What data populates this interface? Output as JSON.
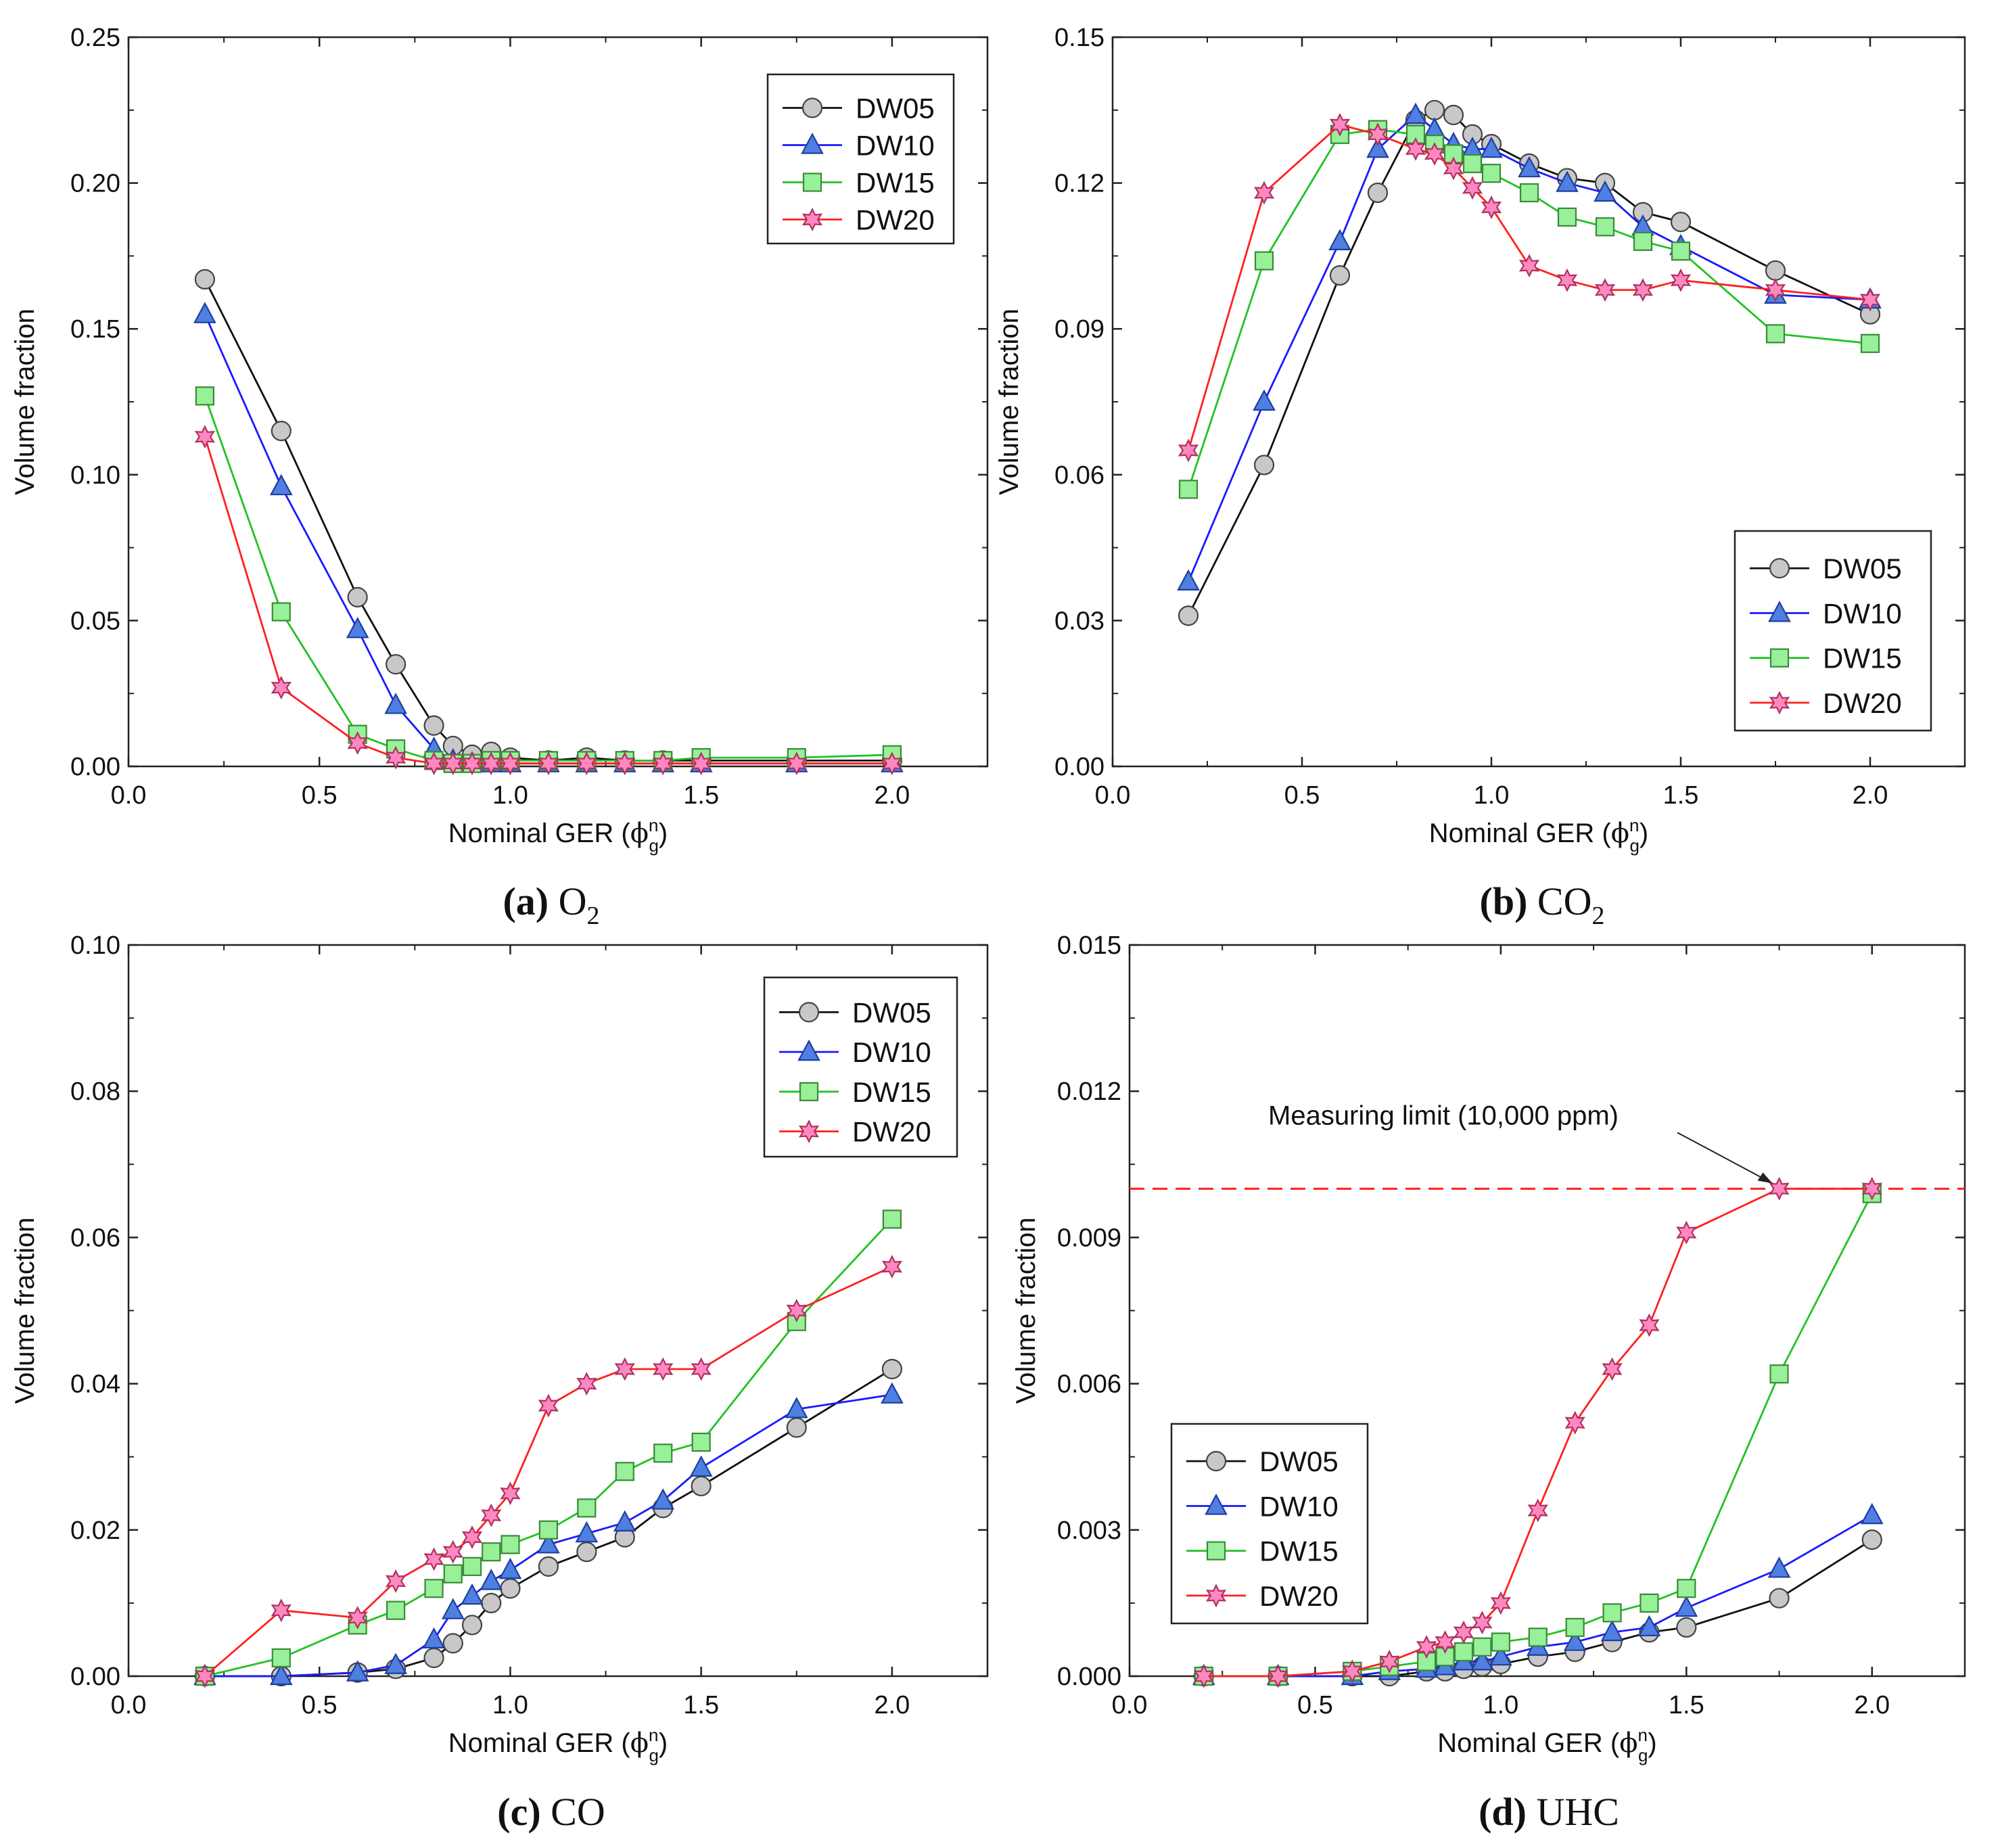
{
  "colors": {
    "DW05": {
      "line": "#111111",
      "fill": "#c8c8c8",
      "edge": "#444444"
    },
    "DW10": {
      "line": "#1a1aff",
      "fill": "#4f7fe0",
      "edge": "#1f3fa0"
    },
    "DW15": {
      "line": "#22c222",
      "fill": "#98f098",
      "edge": "#3a8a3a"
    },
    "DW20": {
      "line": "#ff2020",
      "fill": "#ff88c0",
      "edge": "#b03060"
    },
    "limit": "#ff2020"
  },
  "chart_data": [
    {
      "id": "a",
      "type": "line",
      "caption_bold": "(a)",
      "caption_text": "O",
      "caption_sub": "2",
      "xlabel": "Nominal GER (",
      "xlabel_symbol": "ϕ",
      "xlabel_sup": "n",
      "xlabel_sub": "g",
      "xlabel_close": ")",
      "ylabel": "Volume fraction",
      "xlim": [
        0,
        2.25
      ],
      "ylim": [
        0,
        0.25
      ],
      "xticks": [
        "0.0",
        "0.5",
        "1.0",
        "1.5",
        "2.0"
      ],
      "yticks": [
        "0.00",
        "0.05",
        "0.10",
        "0.15",
        "0.20",
        "0.25"
      ],
      "legend_position": "top-right",
      "series": [
        {
          "name": "DW05",
          "marker": "circle",
          "x": [
            0.2,
            0.4,
            0.6,
            0.7,
            0.8,
            0.85,
            0.9,
            0.95,
            1.0,
            1.1,
            1.2,
            1.3,
            1.4,
            1.5,
            1.75,
            2.0
          ],
          "y": [
            0.167,
            0.115,
            0.058,
            0.035,
            0.014,
            0.007,
            0.004,
            0.005,
            0.003,
            0.002,
            0.003,
            0.002,
            0.002,
            0.002,
            0.002,
            0.002
          ]
        },
        {
          "name": "DW10",
          "marker": "triangle",
          "x": [
            0.2,
            0.4,
            0.6,
            0.7,
            0.8,
            0.85,
            0.9,
            0.95,
            1.0,
            1.1,
            1.2,
            1.3,
            1.4,
            1.5,
            1.75,
            2.0
          ],
          "y": [
            0.155,
            0.096,
            0.047,
            0.021,
            0.006,
            0.002,
            0.001,
            0.001,
            0.001,
            0.001,
            0.001,
            0.001,
            0.001,
            0.001,
            0.001,
            0.001
          ]
        },
        {
          "name": "DW15",
          "marker": "square",
          "x": [
            0.2,
            0.4,
            0.6,
            0.7,
            0.8,
            0.85,
            0.9,
            0.95,
            1.0,
            1.1,
            1.2,
            1.3,
            1.4,
            1.5,
            1.75,
            2.0
          ],
          "y": [
            0.127,
            0.053,
            0.011,
            0.006,
            0.002,
            0.001,
            0.001,
            0.002,
            0.002,
            0.002,
            0.002,
            0.002,
            0.002,
            0.003,
            0.003,
            0.004
          ]
        },
        {
          "name": "DW20",
          "marker": "star",
          "x": [
            0.2,
            0.4,
            0.6,
            0.7,
            0.8,
            0.85,
            0.9,
            0.95,
            1.0,
            1.1,
            1.2,
            1.3,
            1.4,
            1.5,
            1.75,
            2.0
          ],
          "y": [
            0.113,
            0.027,
            0.008,
            0.003,
            0.001,
            0.001,
            0.001,
            0.001,
            0.001,
            0.001,
            0.001,
            0.001,
            0.001,
            0.001,
            0.001,
            0.001
          ]
        }
      ]
    },
    {
      "id": "b",
      "type": "line",
      "caption_bold": "(b)",
      "caption_text": "CO",
      "caption_sub": "2",
      "xlabel": "Nominal GER (",
      "xlabel_symbol": "ϕ",
      "xlabel_sup": "n",
      "xlabel_sub": "g",
      "xlabel_close": ")",
      "ylabel": "Volume fraction",
      "xlim": [
        0,
        2.25
      ],
      "ylim": [
        0,
        0.15
      ],
      "xticks": [
        "0.0",
        "0.5",
        "1.0",
        "1.5",
        "2.0"
      ],
      "yticks": [
        "0.00",
        "0.03",
        "0.06",
        "0.09",
        "0.12",
        "0.15"
      ],
      "legend_position": "bottom-right",
      "series": [
        {
          "name": "DW05",
          "marker": "circle",
          "x": [
            0.2,
            0.4,
            0.6,
            0.7,
            0.8,
            0.85,
            0.9,
            0.95,
            1.0,
            1.1,
            1.2,
            1.3,
            1.4,
            1.5,
            1.75,
            2.0
          ],
          "y": [
            0.031,
            0.062,
            0.101,
            0.118,
            0.133,
            0.135,
            0.134,
            0.13,
            0.128,
            0.124,
            0.121,
            0.12,
            0.114,
            0.112,
            0.102,
            0.093
          ]
        },
        {
          "name": "DW10",
          "marker": "triangle",
          "x": [
            0.2,
            0.4,
            0.6,
            0.7,
            0.8,
            0.85,
            0.9,
            0.95,
            1.0,
            1.1,
            1.2,
            1.3,
            1.4,
            1.5,
            1.75,
            2.0
          ],
          "y": [
            0.038,
            0.075,
            0.108,
            0.127,
            0.134,
            0.131,
            0.128,
            0.127,
            0.127,
            0.123,
            0.12,
            0.118,
            0.111,
            0.107,
            0.097,
            0.096
          ]
        },
        {
          "name": "DW15",
          "marker": "square",
          "x": [
            0.2,
            0.4,
            0.6,
            0.7,
            0.8,
            0.85,
            0.9,
            0.95,
            1.0,
            1.1,
            1.2,
            1.3,
            1.4,
            1.5,
            1.75,
            2.0
          ],
          "y": [
            0.057,
            0.104,
            0.13,
            0.131,
            0.13,
            0.128,
            0.126,
            0.124,
            0.122,
            0.118,
            0.113,
            0.111,
            0.108,
            0.106,
            0.089,
            0.087
          ]
        },
        {
          "name": "DW20",
          "marker": "star",
          "x": [
            0.2,
            0.4,
            0.6,
            0.7,
            0.8,
            0.85,
            0.9,
            0.95,
            1.0,
            1.1,
            1.2,
            1.3,
            1.4,
            1.5,
            1.75,
            2.0
          ],
          "y": [
            0.065,
            0.118,
            0.132,
            0.13,
            0.127,
            0.126,
            0.123,
            0.119,
            0.115,
            0.103,
            0.1,
            0.098,
            0.098,
            0.1,
            0.098,
            0.096
          ]
        }
      ]
    },
    {
      "id": "c",
      "type": "line",
      "caption_bold": "(c)",
      "caption_text": "CO",
      "caption_sub": "",
      "xlabel": "Nominal GER (",
      "xlabel_symbol": "ϕ",
      "xlabel_sup": "n",
      "xlabel_sub": "g",
      "xlabel_close": ")",
      "ylabel": "Volume fraction",
      "xlim": [
        0,
        2.25
      ],
      "ylim": [
        0,
        0.1
      ],
      "xticks": [
        "0.0",
        "0.5",
        "1.0",
        "1.5",
        "2.0"
      ],
      "yticks": [
        "0.00",
        "0.02",
        "0.04",
        "0.06",
        "0.08",
        "0.10"
      ],
      "legend_position": "top-right",
      "series": [
        {
          "name": "DW05",
          "marker": "circle",
          "x": [
            0.2,
            0.4,
            0.6,
            0.7,
            0.8,
            0.85,
            0.9,
            0.95,
            1.0,
            1.1,
            1.2,
            1.3,
            1.4,
            1.5,
            1.75,
            2.0
          ],
          "y": [
            0.0,
            0.0,
            0.0005,
            0.001,
            0.0025,
            0.0045,
            0.007,
            0.01,
            0.012,
            0.015,
            0.017,
            0.019,
            0.023,
            0.026,
            0.034,
            0.042
          ]
        },
        {
          "name": "DW10",
          "marker": "triangle",
          "x": [
            0.2,
            0.4,
            0.6,
            0.7,
            0.8,
            0.85,
            0.9,
            0.95,
            1.0,
            1.1,
            1.2,
            1.3,
            1.4,
            1.5,
            1.75,
            2.0
          ],
          "y": [
            0.0,
            0.0,
            0.0005,
            0.0015,
            0.005,
            0.009,
            0.011,
            0.013,
            0.0145,
            0.018,
            0.0195,
            0.021,
            0.024,
            0.0285,
            0.0365,
            0.0385
          ]
        },
        {
          "name": "DW15",
          "marker": "square",
          "x": [
            0.2,
            0.4,
            0.6,
            0.7,
            0.8,
            0.85,
            0.9,
            0.95,
            1.0,
            1.1,
            1.2,
            1.3,
            1.4,
            1.5,
            1.75,
            2.0
          ],
          "y": [
            0.0,
            0.0025,
            0.007,
            0.009,
            0.012,
            0.014,
            0.015,
            0.017,
            0.018,
            0.02,
            0.023,
            0.028,
            0.0305,
            0.032,
            0.0485,
            0.0625
          ]
        },
        {
          "name": "DW20",
          "marker": "star",
          "x": [
            0.2,
            0.4,
            0.6,
            0.7,
            0.8,
            0.85,
            0.9,
            0.95,
            1.0,
            1.1,
            1.2,
            1.3,
            1.4,
            1.5,
            1.75,
            2.0
          ],
          "y": [
            0.0,
            0.009,
            0.008,
            0.013,
            0.016,
            0.017,
            0.019,
            0.022,
            0.025,
            0.037,
            0.04,
            0.042,
            0.042,
            0.042,
            0.05,
            0.056
          ]
        }
      ]
    },
    {
      "id": "d",
      "type": "line",
      "caption_bold": "(d)",
      "caption_text": "UHC",
      "caption_sub": "",
      "xlabel": "Nominal GER (",
      "xlabel_symbol": "ϕ",
      "xlabel_sup": "n",
      "xlabel_sub": "g",
      "xlabel_close": ")",
      "ylabel": "Volume fraction",
      "xlim": [
        0,
        2.25
      ],
      "ylim": [
        0,
        0.015
      ],
      "xticks": [
        "0.0",
        "0.5",
        "1.0",
        "1.5",
        "2.0"
      ],
      "yticks": [
        "0.000",
        "0.003",
        "0.006",
        "0.009",
        "0.012",
        "0.015"
      ],
      "legend_position": "bottom-left",
      "annotation": {
        "text": "Measuring limit (10,000 ppm)",
        "limit_y": 0.01,
        "arrow_to_x": 1.75
      },
      "series": [
        {
          "name": "DW05",
          "marker": "circle",
          "x": [
            0.2,
            0.4,
            0.6,
            0.7,
            0.8,
            0.85,
            0.9,
            0.95,
            1.0,
            1.1,
            1.2,
            1.3,
            1.4,
            1.5,
            1.75,
            2.0
          ],
          "y": [
            0.0,
            0.0,
            0.0,
            0.0,
            0.0001,
            0.0001,
            0.00015,
            0.0002,
            0.00025,
            0.0004,
            0.0005,
            0.0007,
            0.0009,
            0.001,
            0.0016,
            0.0028
          ]
        },
        {
          "name": "DW10",
          "marker": "triangle",
          "x": [
            0.2,
            0.4,
            0.6,
            0.7,
            0.8,
            0.85,
            0.9,
            0.95,
            1.0,
            1.1,
            1.2,
            1.3,
            1.4,
            1.5,
            1.75,
            2.0
          ],
          "y": [
            0.0,
            0.0,
            0.0,
            0.0001,
            0.00015,
            0.0002,
            0.0003,
            0.0003,
            0.0004,
            0.0006,
            0.0007,
            0.0009,
            0.001,
            0.0014,
            0.0022,
            0.0033
          ]
        },
        {
          "name": "DW15",
          "marker": "square",
          "x": [
            0.2,
            0.4,
            0.6,
            0.7,
            0.8,
            0.85,
            0.9,
            0.95,
            1.0,
            1.1,
            1.2,
            1.3,
            1.4,
            1.5,
            1.75,
            2.0
          ],
          "y": [
            0.0,
            0.0,
            0.0001,
            0.0002,
            0.0003,
            0.0004,
            0.0005,
            0.0006,
            0.0007,
            0.0008,
            0.001,
            0.0013,
            0.0015,
            0.0018,
            0.0062,
            0.0099
          ]
        },
        {
          "name": "DW20",
          "marker": "star",
          "x": [
            0.2,
            0.4,
            0.6,
            0.7,
            0.8,
            0.85,
            0.9,
            0.95,
            1.0,
            1.1,
            1.2,
            1.3,
            1.4,
            1.5,
            1.75,
            2.0
          ],
          "y": [
            0.0,
            0.0,
            0.0001,
            0.0003,
            0.0006,
            0.0007,
            0.0009,
            0.0011,
            0.0015,
            0.0034,
            0.0052,
            0.0063,
            0.0072,
            0.0091,
            0.01,
            0.01
          ]
        }
      ]
    }
  ]
}
